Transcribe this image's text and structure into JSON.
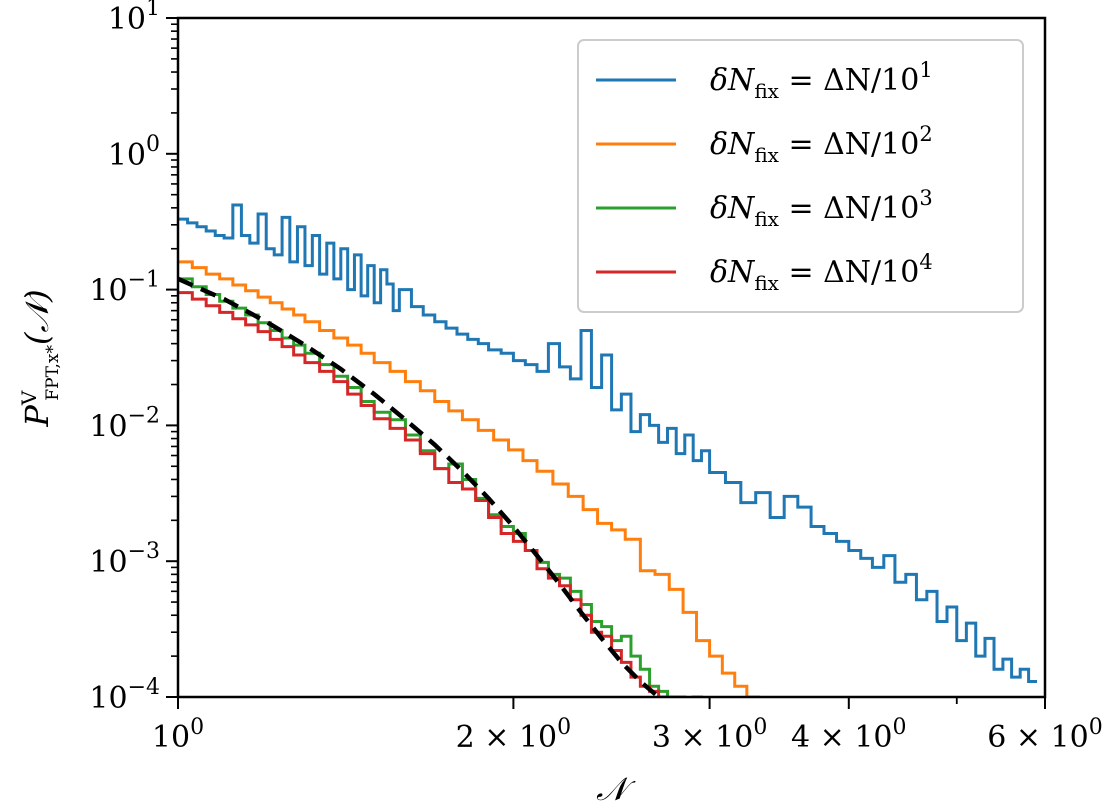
{
  "chart_data": {
    "type": "line",
    "title": "",
    "xlabel": "𝒩",
    "ylabel": "P^V_FPT,x*(𝒩)",
    "xscale": "log",
    "yscale": "log",
    "xlim": [
      1.0,
      6.0
    ],
    "ylim": [
      0.0001,
      10
    ],
    "grid": false,
    "legend_position": "top-right",
    "x_ticks": [
      {
        "value": 1,
        "label": "10",
        "sup": "0"
      },
      {
        "value": 2,
        "label": "2 × 10",
        "sup": "0"
      },
      {
        "value": 3,
        "label": "3 × 10",
        "sup": "0"
      },
      {
        "value": 4,
        "label": "4 × 10",
        "sup": "0"
      },
      {
        "value": 6,
        "label": "6 × 10",
        "sup": "0"
      }
    ],
    "y_ticks": [
      {
        "value": 10,
        "label": "10",
        "sup": "1"
      },
      {
        "value": 1,
        "label": "10",
        "sup": "0"
      },
      {
        "value": 0.1,
        "label": "10",
        "sup": "−1"
      },
      {
        "value": 0.01,
        "label": "10",
        "sup": "−2"
      },
      {
        "value": 0.001,
        "label": "10",
        "sup": "−3"
      },
      {
        "value": 0.0001,
        "label": "10",
        "sup": "−4"
      }
    ],
    "series": [
      {
        "name": "δN_fix = ΔN/10^1",
        "color": "#1f77b4",
        "style": "step",
        "x": [
          1.0,
          1.02,
          1.04,
          1.06,
          1.08,
          1.1,
          1.12,
          1.14,
          1.16,
          1.18,
          1.2,
          1.22,
          1.24,
          1.26,
          1.28,
          1.3,
          1.32,
          1.34,
          1.36,
          1.38,
          1.4,
          1.42,
          1.44,
          1.46,
          1.48,
          1.5,
          1.52,
          1.54,
          1.56,
          1.58,
          1.62,
          1.66,
          1.7,
          1.74,
          1.78,
          1.82,
          1.86,
          1.9,
          1.95,
          2.0,
          2.05,
          2.1,
          2.15,
          2.2,
          2.25,
          2.3,
          2.35,
          2.4,
          2.45,
          2.5,
          2.55,
          2.6,
          2.65,
          2.7,
          2.75,
          2.8,
          2.85,
          2.9,
          2.95,
          3.0,
          3.1,
          3.2,
          3.3,
          3.4,
          3.5,
          3.6,
          3.7,
          3.8,
          3.9,
          4.0,
          4.1,
          4.2,
          4.3,
          4.4,
          4.5,
          4.6,
          4.7,
          4.8,
          4.9,
          5.0,
          5.1,
          5.2,
          5.3,
          5.4,
          5.5,
          5.6,
          5.7,
          5.8
        ],
        "y": [
          0.33,
          0.31,
          0.29,
          0.27,
          0.25,
          0.24,
          0.42,
          0.25,
          0.22,
          0.36,
          0.2,
          0.18,
          0.34,
          0.16,
          0.29,
          0.15,
          0.25,
          0.13,
          0.22,
          0.12,
          0.2,
          0.1,
          0.18,
          0.09,
          0.15,
          0.08,
          0.14,
          0.11,
          0.07,
          0.1,
          0.075,
          0.065,
          0.058,
          0.052,
          0.047,
          0.043,
          0.04,
          0.036,
          0.034,
          0.03,
          0.028,
          0.025,
          0.04,
          0.027,
          0.022,
          0.05,
          0.019,
          0.033,
          0.013,
          0.017,
          0.009,
          0.012,
          0.01,
          0.0075,
          0.0095,
          0.0062,
          0.0085,
          0.0055,
          0.0065,
          0.0045,
          0.0038,
          0.0027,
          0.0032,
          0.0021,
          0.003,
          0.0025,
          0.0018,
          0.0016,
          0.0014,
          0.0012,
          0.00105,
          0.0009,
          0.0011,
          0.0007,
          0.0008,
          0.00052,
          0.0006,
          0.00036,
          0.00046,
          0.00026,
          0.00035,
          0.0002,
          0.00027,
          0.00016,
          0.00019,
          0.00014,
          0.00016,
          0.00013
        ]
      },
      {
        "name": "δN_fix = ΔN/10^2",
        "color": "#ff7f0e",
        "style": "step",
        "x": [
          1.0,
          1.03,
          1.06,
          1.09,
          1.12,
          1.15,
          1.18,
          1.21,
          1.24,
          1.27,
          1.3,
          1.34,
          1.38,
          1.42,
          1.46,
          1.5,
          1.55,
          1.6,
          1.65,
          1.7,
          1.75,
          1.8,
          1.86,
          1.92,
          1.98,
          2.04,
          2.1,
          2.17,
          2.24,
          2.31,
          2.38,
          2.45,
          2.52,
          2.6,
          2.68,
          2.76,
          2.84,
          2.92,
          3.0,
          3.08,
          3.16,
          3.24,
          3.32,
          3.4
        ],
        "y": [
          0.16,
          0.145,
          0.13,
          0.12,
          0.108,
          0.098,
          0.088,
          0.08,
          0.072,
          0.065,
          0.058,
          0.05,
          0.044,
          0.039,
          0.034,
          0.029,
          0.025,
          0.021,
          0.018,
          0.015,
          0.0128,
          0.011,
          0.0092,
          0.0078,
          0.0066,
          0.0055,
          0.0046,
          0.0037,
          0.003,
          0.0024,
          0.0019,
          0.0017,
          0.00145,
          0.00085,
          0.0008,
          0.00062,
          0.00042,
          0.00026,
          0.0002,
          0.00015,
          0.00012,
          0.0001,
          9e-05,
          8e-05
        ]
      },
      {
        "name": "δN_fix = ΔN/10^3",
        "color": "#2ca02c",
        "style": "step",
        "x": [
          1.0,
          1.03,
          1.06,
          1.09,
          1.12,
          1.15,
          1.18,
          1.21,
          1.24,
          1.27,
          1.3,
          1.34,
          1.38,
          1.42,
          1.46,
          1.5,
          1.55,
          1.6,
          1.65,
          1.7,
          1.75,
          1.8,
          1.85,
          1.9,
          1.95,
          2.0,
          2.05,
          2.1,
          2.15,
          2.2,
          2.25,
          2.3,
          2.35,
          2.4,
          2.45,
          2.5,
          2.55,
          2.6,
          2.65,
          2.7,
          2.75,
          2.8,
          2.85,
          2.9,
          2.95,
          3.0
        ],
        "y": [
          0.12,
          0.105,
          0.092,
          0.082,
          0.073,
          0.065,
          0.057,
          0.05,
          0.044,
          0.039,
          0.034,
          0.028,
          0.023,
          0.019,
          0.015,
          0.0125,
          0.011,
          0.0085,
          0.0065,
          0.0048,
          0.0052,
          0.004,
          0.0029,
          0.0022,
          0.0018,
          0.0016,
          0.0012,
          0.00098,
          0.0008,
          0.00075,
          0.0006,
          0.00048,
          0.00036,
          0.00033,
          0.00026,
          0.00028,
          0.0002,
          0.00016,
          0.00012,
          0.00011,
          0.0001,
          0.0001,
          9e-05,
          0.0001,
          9e-05,
          9e-05
        ]
      },
      {
        "name": "δN_fix = ΔN/10^4",
        "color": "#d62728",
        "style": "step",
        "x": [
          1.0,
          1.03,
          1.06,
          1.09,
          1.12,
          1.15,
          1.18,
          1.21,
          1.24,
          1.27,
          1.3,
          1.34,
          1.38,
          1.42,
          1.46,
          1.5,
          1.55,
          1.6,
          1.65,
          1.7,
          1.75,
          1.8,
          1.85,
          1.9,
          1.95,
          2.0,
          2.05,
          2.1,
          2.15,
          2.2,
          2.25,
          2.3,
          2.35,
          2.4,
          2.45,
          2.5,
          2.55,
          2.6,
          2.65,
          2.7,
          2.75,
          2.8,
          2.85,
          2.9
        ],
        "y": [
          0.095,
          0.085,
          0.076,
          0.068,
          0.061,
          0.055,
          0.049,
          0.043,
          0.038,
          0.033,
          0.029,
          0.025,
          0.021,
          0.017,
          0.014,
          0.0112,
          0.0095,
          0.0078,
          0.0062,
          0.0048,
          0.0038,
          0.0034,
          0.0028,
          0.0021,
          0.0016,
          0.0014,
          0.0012,
          0.00088,
          0.00075,
          0.00066,
          0.00052,
          0.0004,
          0.0003,
          0.00028,
          0.00022,
          0.00018,
          0.00014,
          0.00012,
          0.00011,
          0.0001,
          9e-05,
          9e-05,
          8e-05,
          8e-05
        ]
      },
      {
        "name": "",
        "color": "#000000",
        "style": "dashed",
        "x": [
          1.0,
          1.1,
          1.2,
          1.3,
          1.4,
          1.5,
          1.6,
          1.7,
          1.8,
          1.9,
          2.0,
          2.1,
          2.2,
          2.3,
          2.4,
          2.5,
          2.6,
          2.7,
          2.8
        ],
        "y": [
          0.12,
          0.085,
          0.058,
          0.039,
          0.026,
          0.017,
          0.011,
          0.0072,
          0.0046,
          0.0029,
          0.0018,
          0.0011,
          0.00068,
          0.00042,
          0.00027,
          0.00018,
          0.00013,
          0.0001,
          8.5e-05
        ]
      }
    ],
    "legend": [
      {
        "label": "δN",
        "sub": "fix",
        "rest": " = ΔN/10",
        "sup": "1",
        "color": "#1f77b4"
      },
      {
        "label": "δN",
        "sub": "fix",
        "rest": " = ΔN/10",
        "sup": "2",
        "color": "#ff7f0e"
      },
      {
        "label": "δN",
        "sub": "fix",
        "rest": " = ΔN/10",
        "sup": "3",
        "color": "#2ca02c"
      },
      {
        "label": "δN",
        "sub": "fix",
        "rest": " = ΔN/10",
        "sup": "4",
        "color": "#d62728"
      }
    ]
  }
}
